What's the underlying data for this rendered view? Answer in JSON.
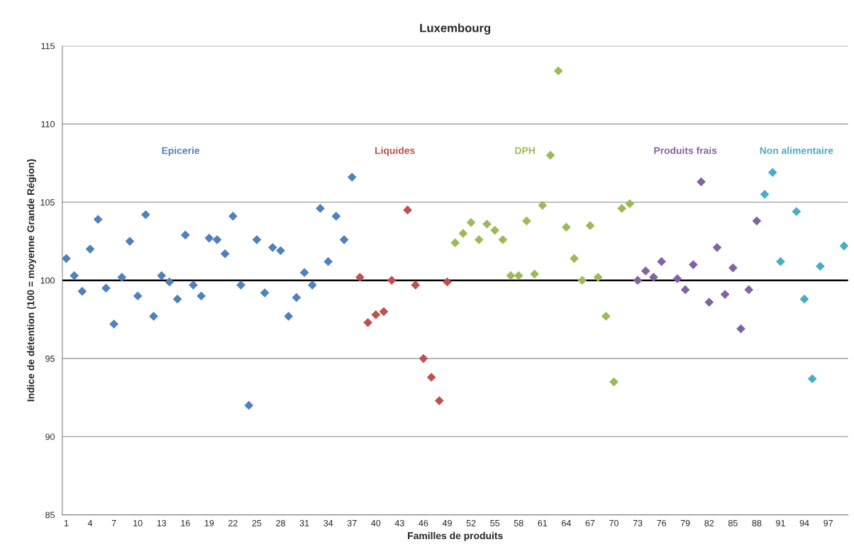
{
  "chart_data": {
    "type": "scatter",
    "title": "Luxembourg",
    "xlabel": "Familles de produits",
    "ylabel": "Indice de détention (100 = moyenne Grande Région)",
    "categories": [
      "1",
      null,
      null,
      "4",
      null,
      null,
      "7",
      null,
      null,
      "10",
      null,
      null,
      "13",
      null,
      null,
      "16",
      null,
      null,
      "19",
      null,
      null,
      "22",
      null,
      null,
      "25",
      null,
      null,
      "28",
      null,
      null,
      "31",
      null,
      null,
      "34",
      null,
      null,
      "37",
      null,
      null,
      "40",
      null,
      null,
      "43",
      null,
      null,
      "46",
      null,
      null,
      "49",
      null,
      null,
      "52",
      null,
      null,
      "55",
      null,
      null,
      "58",
      null,
      null,
      "61",
      null,
      null,
      "64",
      null,
      null,
      "67",
      null,
      null,
      "70",
      null,
      null,
      "73",
      null,
      null,
      "76",
      null,
      null,
      "79",
      null,
      null,
      "82",
      null,
      null,
      "85",
      null,
      null,
      "88",
      null,
      null,
      "91",
      null,
      null,
      "94",
      null,
      null,
      "97",
      null,
      null
    ],
    "series": [
      {
        "name": "Epicerie",
        "color": "#4f81bd",
        "values": [
          101.4,
          100.3,
          99.3,
          102.0,
          103.9,
          99.5,
          97.2,
          100.2,
          102.5,
          99.0,
          104.2,
          97.7,
          100.3,
          99.9,
          98.8,
          102.9,
          99.7,
          99.0,
          102.7,
          102.6,
          101.7,
          104.1,
          99.7,
          92.0,
          102.6,
          99.2,
          102.1,
          101.9,
          97.7,
          98.9,
          100.5,
          99.7,
          104.6,
          101.2,
          104.1,
          102.6,
          106.6,
          null,
          null,
          null,
          null,
          null,
          null,
          null,
          null,
          null,
          null,
          null,
          null,
          null,
          null,
          null,
          null,
          null,
          null,
          null,
          null,
          null,
          null,
          null,
          null,
          null,
          null,
          null,
          null,
          null,
          null,
          null,
          null,
          null,
          null,
          null,
          null,
          null,
          null,
          null,
          null,
          null,
          null,
          null,
          null,
          null,
          null,
          null,
          null,
          null,
          null,
          null,
          null,
          null,
          null,
          null,
          null,
          null,
          null,
          null,
          null,
          null,
          null
        ]
      },
      {
        "name": "Liquides",
        "color": "#c0504d",
        "values": [
          null,
          null,
          null,
          null,
          null,
          null,
          null,
          null,
          null,
          null,
          null,
          null,
          null,
          null,
          null,
          null,
          null,
          null,
          null,
          null,
          null,
          null,
          null,
          null,
          null,
          null,
          null,
          null,
          null,
          null,
          null,
          null,
          null,
          null,
          null,
          null,
          null,
          100.2,
          97.3,
          97.8,
          98.0,
          100.0,
          null,
          104.5,
          99.7,
          95.0,
          93.8,
          92.3,
          99.9,
          null,
          null,
          null,
          null,
          null,
          null,
          null,
          null,
          null,
          null,
          null,
          null,
          null,
          null,
          null,
          null,
          null,
          null,
          null,
          null,
          null,
          null,
          null,
          null,
          null,
          null,
          null,
          null,
          null,
          null,
          null,
          null,
          null,
          null,
          null,
          null,
          null,
          null,
          null,
          null,
          null,
          null,
          null,
          null,
          null,
          null,
          null,
          null,
          null,
          null
        ]
      },
      {
        "name": "DPH",
        "color": "#9bbb59",
        "values": [
          null,
          null,
          null,
          null,
          null,
          null,
          null,
          null,
          null,
          null,
          null,
          null,
          null,
          null,
          null,
          null,
          null,
          null,
          null,
          null,
          null,
          null,
          null,
          null,
          null,
          null,
          null,
          null,
          null,
          null,
          null,
          null,
          null,
          null,
          null,
          null,
          null,
          null,
          null,
          null,
          null,
          null,
          null,
          null,
          null,
          null,
          null,
          null,
          null,
          102.4,
          103.0,
          103.7,
          102.6,
          103.6,
          103.2,
          102.6,
          100.3,
          100.3,
          103.8,
          100.4,
          104.8,
          108.0,
          113.4,
          103.4,
          101.4,
          100.0,
          103.5,
          100.2,
          97.7,
          93.5,
          104.6,
          104.9,
          null,
          null,
          null,
          null,
          null,
          null,
          null,
          null,
          null,
          null,
          null,
          null,
          null,
          null,
          null,
          null,
          null,
          null,
          null,
          null,
          null,
          null,
          null,
          null,
          null,
          null,
          null
        ]
      },
      {
        "name": "Produits frais",
        "color": "#8064a2",
        "values": [
          null,
          null,
          null,
          null,
          null,
          null,
          null,
          null,
          null,
          null,
          null,
          null,
          null,
          null,
          null,
          null,
          null,
          null,
          null,
          null,
          null,
          null,
          null,
          null,
          null,
          null,
          null,
          null,
          null,
          null,
          null,
          null,
          null,
          null,
          null,
          null,
          null,
          null,
          null,
          null,
          null,
          null,
          null,
          null,
          null,
          null,
          null,
          null,
          null,
          null,
          null,
          null,
          null,
          null,
          null,
          null,
          null,
          null,
          null,
          null,
          null,
          null,
          null,
          null,
          null,
          null,
          null,
          null,
          null,
          null,
          null,
          null,
          100.0,
          100.6,
          100.2,
          101.2,
          null,
          100.1,
          99.4,
          101.0,
          106.3,
          98.6,
          102.1,
          99.1,
          100.8,
          96.9,
          99.4,
          103.8,
          null,
          null,
          null,
          null,
          null,
          null,
          null,
          null,
          null,
          null,
          null
        ]
      },
      {
        "name": "Non alimentaire",
        "color": "#4bacc6",
        "values": [
          null,
          null,
          null,
          null,
          null,
          null,
          null,
          null,
          null,
          null,
          null,
          null,
          null,
          null,
          null,
          null,
          null,
          null,
          null,
          null,
          null,
          null,
          null,
          null,
          null,
          null,
          null,
          null,
          null,
          null,
          null,
          null,
          null,
          null,
          null,
          null,
          null,
          null,
          null,
          null,
          null,
          null,
          null,
          null,
          null,
          null,
          null,
          null,
          null,
          null,
          null,
          null,
          null,
          null,
          null,
          null,
          null,
          null,
          null,
          null,
          null,
          null,
          null,
          null,
          null,
          null,
          null,
          null,
          null,
          null,
          null,
          null,
          null,
          null,
          null,
          null,
          null,
          null,
          null,
          null,
          null,
          null,
          null,
          null,
          null,
          null,
          null,
          null,
          105.5,
          106.9,
          101.2,
          null,
          104.4,
          98.8,
          93.7,
          100.9,
          null,
          null,
          102.2
        ]
      }
    ],
    "ylim": [
      85,
      115
    ],
    "yticks": [
      85,
      90,
      95,
      100,
      105,
      110,
      115
    ],
    "grid": "y",
    "legend": false,
    "marker": "diamond",
    "ref_lines": [
      {
        "axis": "y",
        "value": 100,
        "color": "#000000"
      }
    ]
  }
}
